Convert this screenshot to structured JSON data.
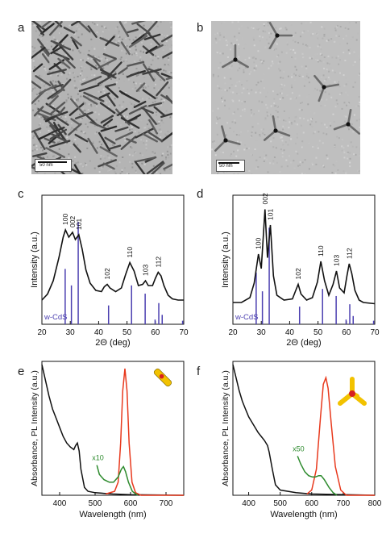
{
  "figure": {
    "panels": {
      "a": {
        "letter": "a",
        "scale_label": "50 nm"
      },
      "b": {
        "letter": "b",
        "scale_label": "50 nm"
      },
      "c": {
        "letter": "c"
      },
      "d": {
        "letter": "d"
      },
      "e": {
        "letter": "e",
        "annotation": "x10"
      },
      "f": {
        "letter": "f",
        "annotation": "x50"
      }
    },
    "colors": {
      "absorbance": "#111111",
      "pl": "#e8391d",
      "scaled": "#2e8b2e",
      "reference": "#4b3fb0",
      "rod": "#f2c200",
      "core": "#d62020"
    },
    "icons": {
      "e": "nanorod-icon",
      "f": "tetrapod-icon"
    }
  },
  "chart_data": [
    {
      "panel": "c",
      "type": "line",
      "xlabel": "2Θ (deg)",
      "ylabel": "Intensity (a.u.)",
      "xlim": [
        20,
        70
      ],
      "xticks": [
        20,
        30,
        40,
        50,
        60,
        70
      ],
      "reference_label": "w-CdS",
      "peaks": [
        {
          "label": "100",
          "x": 28.3
        },
        {
          "label": "002",
          "x": 30.8
        },
        {
          "label": "101",
          "x": 33.0
        },
        {
          "label": "102",
          "x": 43.0
        },
        {
          "label": "110",
          "x": 51.0
        },
        {
          "label": "103",
          "x": 56.5
        },
        {
          "label": "112",
          "x": 61.0
        }
      ],
      "reference_lines": [
        {
          "x": 28.2,
          "h": 0.47
        },
        {
          "x": 30.4,
          "h": 0.33
        },
        {
          "x": 32.8,
          "h": 0.87
        },
        {
          "x": 43.5,
          "h": 0.16
        },
        {
          "x": 51.6,
          "h": 0.33
        },
        {
          "x": 56.4,
          "h": 0.26
        },
        {
          "x": 59.9,
          "h": 0.04
        },
        {
          "x": 61.2,
          "h": 0.18
        },
        {
          "x": 62.4,
          "h": 0.08
        },
        {
          "x": 69.6,
          "h": 0.03
        }
      ],
      "series": [
        {
          "values": [
            [
              20,
              0.2
            ],
            [
              22,
              0.25
            ],
            [
              24,
              0.36
            ],
            [
              26,
              0.55
            ],
            [
              27.5,
              0.72
            ],
            [
              28.3,
              0.78
            ],
            [
              29.5,
              0.72
            ],
            [
              30.8,
              0.76
            ],
            [
              31.8,
              0.7
            ],
            [
              33.0,
              0.74
            ],
            [
              34.2,
              0.62
            ],
            [
              35.5,
              0.45
            ],
            [
              37,
              0.34
            ],
            [
              39,
              0.28
            ],
            [
              41,
              0.27
            ],
            [
              42,
              0.31
            ],
            [
              43,
              0.33
            ],
            [
              44,
              0.3
            ],
            [
              46,
              0.27
            ],
            [
              48,
              0.3
            ],
            [
              49.5,
              0.41
            ],
            [
              51,
              0.51
            ],
            [
              52.5,
              0.44
            ],
            [
              54,
              0.32
            ],
            [
              55.5,
              0.33
            ],
            [
              56.5,
              0.36
            ],
            [
              57.5,
              0.32
            ],
            [
              59,
              0.32
            ],
            [
              60,
              0.38
            ],
            [
              61,
              0.43
            ],
            [
              62,
              0.4
            ],
            [
              63,
              0.32
            ],
            [
              64.5,
              0.24
            ],
            [
              66,
              0.21
            ],
            [
              68,
              0.2
            ],
            [
              70,
              0.2
            ]
          ]
        }
      ]
    },
    {
      "panel": "d",
      "type": "line",
      "xlabel": "2Θ (deg)",
      "ylabel": "Intensity (a.u.)",
      "xlim": [
        20,
        70
      ],
      "xticks": [
        20,
        30,
        40,
        50,
        60,
        70
      ],
      "reference_label": "w-CdS",
      "peaks": [
        {
          "label": "100",
          "x": 29.0
        },
        {
          "label": "002",
          "x": 31.3
        },
        {
          "label": "101",
          "x": 33.2
        },
        {
          "label": "102",
          "x": 43.0
        },
        {
          "label": "110",
          "x": 51.0
        },
        {
          "label": "103",
          "x": 56.5
        },
        {
          "label": "112",
          "x": 61.0
        }
      ],
      "reference_lines": [
        {
          "x": 28.2,
          "h": 0.44
        },
        {
          "x": 30.4,
          "h": 0.28
        },
        {
          "x": 32.8,
          "h": 0.82
        },
        {
          "x": 43.5,
          "h": 0.15
        },
        {
          "x": 51.6,
          "h": 0.3
        },
        {
          "x": 56.4,
          "h": 0.24
        },
        {
          "x": 59.9,
          "h": 0.04
        },
        {
          "x": 61.2,
          "h": 0.17
        },
        {
          "x": 62.4,
          "h": 0.07
        },
        {
          "x": 69.6,
          "h": 0.03
        }
      ],
      "series": [
        {
          "values": [
            [
              20,
              0.18
            ],
            [
              23,
              0.18
            ],
            [
              26,
              0.22
            ],
            [
              27.5,
              0.34
            ],
            [
              29,
              0.58
            ],
            [
              30,
              0.46
            ],
            [
              31.3,
              0.95
            ],
            [
              32.2,
              0.55
            ],
            [
              33.2,
              0.82
            ],
            [
              34.3,
              0.4
            ],
            [
              35.5,
              0.24
            ],
            [
              38,
              0.2
            ],
            [
              41,
              0.21
            ],
            [
              42,
              0.27
            ],
            [
              43,
              0.33
            ],
            [
              44,
              0.25
            ],
            [
              46,
              0.2
            ],
            [
              48,
              0.22
            ],
            [
              49.8,
              0.35
            ],
            [
              51,
              0.52
            ],
            [
              52.3,
              0.36
            ],
            [
              53.8,
              0.24
            ],
            [
              55.3,
              0.33
            ],
            [
              56.5,
              0.44
            ],
            [
              57.6,
              0.3
            ],
            [
              59.2,
              0.26
            ],
            [
              60.2,
              0.4
            ],
            [
              61,
              0.5
            ],
            [
              61.9,
              0.42
            ],
            [
              63,
              0.28
            ],
            [
              64.5,
              0.2
            ],
            [
              66,
              0.18
            ],
            [
              70,
              0.17
            ]
          ]
        }
      ]
    },
    {
      "panel": "e",
      "type": "line",
      "xlabel": "Wavelength (nm)",
      "ylabel": "Absorbance, PL Intensity (a.u.)",
      "xlim": [
        350,
        750
      ],
      "ylim": [
        0,
        1
      ],
      "xticks": [
        400,
        500,
        600,
        700
      ],
      "series": [
        {
          "values": [
            [
              350,
              1.0
            ],
            [
              360,
              0.88
            ],
            [
              370,
              0.76
            ],
            [
              380,
              0.66
            ],
            [
              390,
              0.59
            ],
            [
              400,
              0.52
            ],
            [
              410,
              0.45
            ],
            [
              420,
              0.4
            ],
            [
              430,
              0.37
            ],
            [
              440,
              0.35
            ],
            [
              445,
              0.38
            ],
            [
              450,
              0.4
            ],
            [
              455,
              0.34
            ],
            [
              460,
              0.2
            ],
            [
              470,
              0.06
            ],
            [
              480,
              0.03
            ],
            [
              500,
              0.02
            ],
            [
              550,
              0.01
            ],
            [
              600,
              0.005
            ],
            [
              750,
              0.0
            ]
          ]
        },
        {
          "values": [
            [
              530,
              0.01
            ],
            [
              555,
              0.03
            ],
            [
              565,
              0.1
            ],
            [
              572,
              0.4
            ],
            [
              578,
              0.8
            ],
            [
              584,
              0.97
            ],
            [
              590,
              0.8
            ],
            [
              596,
              0.4
            ],
            [
              604,
              0.1
            ],
            [
              614,
              0.02
            ],
            [
              630,
              0.0
            ],
            [
              750,
              0.0
            ]
          ]
        },
        {
          "values": [
            [
              505,
              0.23
            ],
            [
              512,
              0.16
            ],
            [
              525,
              0.12
            ],
            [
              540,
              0.1
            ],
            [
              552,
              0.1
            ],
            [
              565,
              0.14
            ],
            [
              574,
              0.2
            ],
            [
              580,
              0.22
            ],
            [
              586,
              0.18
            ],
            [
              594,
              0.1
            ],
            [
              605,
              0.03
            ],
            [
              620,
              0.0
            ]
          ]
        }
      ]
    },
    {
      "panel": "f",
      "type": "line",
      "xlabel": "Wavelength (nm)",
      "ylabel": "Absorbance, PL Intensity (a.u.)",
      "xlim": [
        350,
        800
      ],
      "ylim": [
        0,
        1
      ],
      "xticks": [
        400,
        500,
        600,
        700,
        800
      ],
      "series": [
        {
          "values": [
            [
              350,
              1.0
            ],
            [
              360,
              0.9
            ],
            [
              370,
              0.8
            ],
            [
              380,
              0.72
            ],
            [
              390,
              0.66
            ],
            [
              400,
              0.6
            ],
            [
              410,
              0.56
            ],
            [
              420,
              0.52
            ],
            [
              430,
              0.48
            ],
            [
              440,
              0.45
            ],
            [
              450,
              0.42
            ],
            [
              460,
              0.38
            ],
            [
              465,
              0.33
            ],
            [
              475,
              0.2
            ],
            [
              485,
              0.08
            ],
            [
              500,
              0.04
            ],
            [
              550,
              0.02
            ],
            [
              600,
              0.01
            ],
            [
              800,
              0.0
            ]
          ]
        },
        {
          "values": [
            [
              585,
              0.01
            ],
            [
              600,
              0.04
            ],
            [
              615,
              0.2
            ],
            [
              628,
              0.6
            ],
            [
              637,
              0.85
            ],
            [
              645,
              0.9
            ],
            [
              652,
              0.82
            ],
            [
              662,
              0.55
            ],
            [
              675,
              0.22
            ],
            [
              692,
              0.04
            ],
            [
              710,
              0.0
            ],
            [
              800,
              0.0
            ]
          ]
        },
        {
          "values": [
            [
              555,
              0.3
            ],
            [
              565,
              0.24
            ],
            [
              578,
              0.18
            ],
            [
              590,
              0.15
            ],
            [
              602,
              0.14
            ],
            [
              612,
              0.14
            ],
            [
              622,
              0.15
            ],
            [
              630,
              0.15
            ],
            [
              640,
              0.12
            ],
            [
              655,
              0.06
            ],
            [
              668,
              0.02
            ],
            [
              680,
              0.0
            ]
          ]
        }
      ]
    }
  ]
}
